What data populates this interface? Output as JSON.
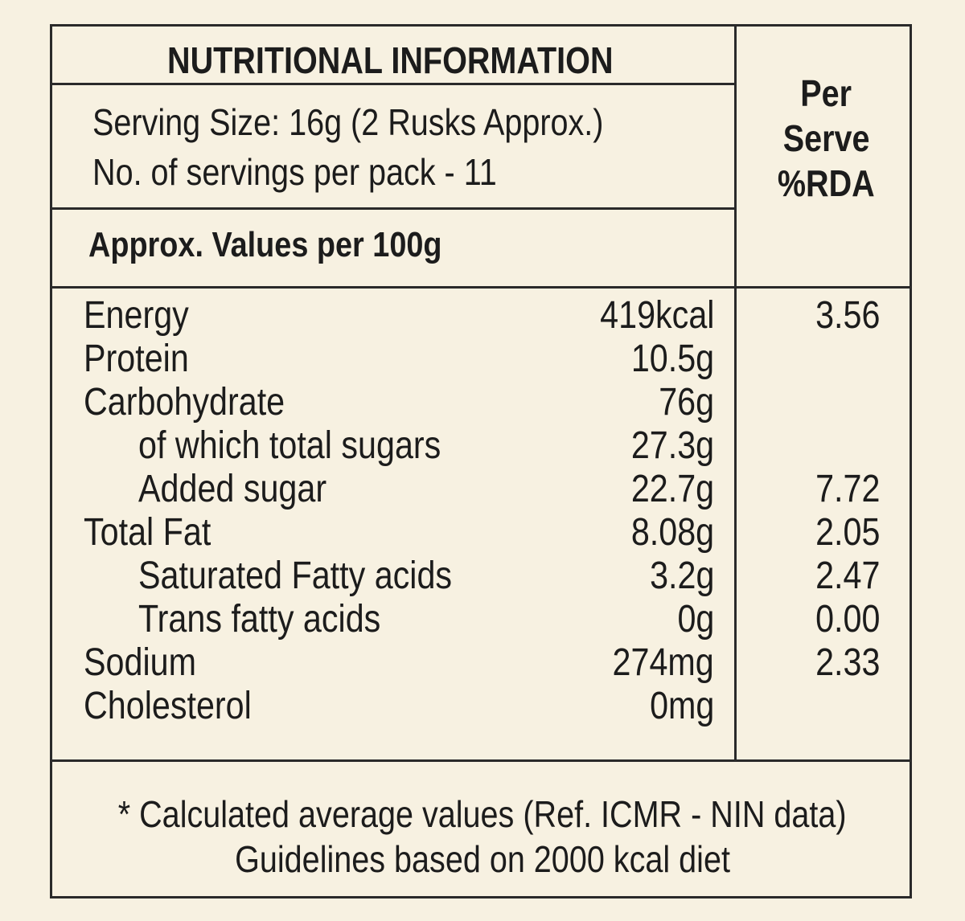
{
  "header": {
    "title": "NUTRITIONAL INFORMATION",
    "serving_size": "Serving Size: 16g (2 Rusks Approx.)",
    "servings_per_pack": "No. of servings per pack - 11",
    "values_basis": "Approx. Values per 100g",
    "rda_header": [
      "Per",
      "Serve",
      "%RDA"
    ]
  },
  "rows": [
    {
      "name": "Energy",
      "indent": false,
      "value": "419kcal",
      "rda": "3.56"
    },
    {
      "name": "Protein",
      "indent": false,
      "value": "10.5g",
      "rda": ""
    },
    {
      "name": "Carbohydrate",
      "indent": false,
      "value": "76g",
      "rda": ""
    },
    {
      "name": "of which total sugars",
      "indent": true,
      "value": "27.3g",
      "rda": ""
    },
    {
      "name": "Added sugar",
      "indent": true,
      "value": "22.7g",
      "rda": "7.72"
    },
    {
      "name": "Total Fat",
      "indent": false,
      "value": "8.08g",
      "rda": "2.05"
    },
    {
      "name": "Saturated Fatty acids",
      "indent": true,
      "value": "3.2g",
      "rda": "2.47"
    },
    {
      "name": "Trans fatty acids",
      "indent": true,
      "value": "0g",
      "rda": "0.00"
    },
    {
      "name": "Sodium",
      "indent": false,
      "value": "274mg",
      "rda": "2.33"
    },
    {
      "name": "Cholesterol",
      "indent": false,
      "value": "0mg",
      "rda": ""
    }
  ],
  "footer": {
    "note": "* Calculated average values (Ref. ICMR - NIN data)",
    "guideline": "Guidelines based on 2000 kcal diet"
  },
  "colors": {
    "background": "#f7f1e1",
    "text": "#1c1c1c",
    "border": "#2a2a2a"
  }
}
